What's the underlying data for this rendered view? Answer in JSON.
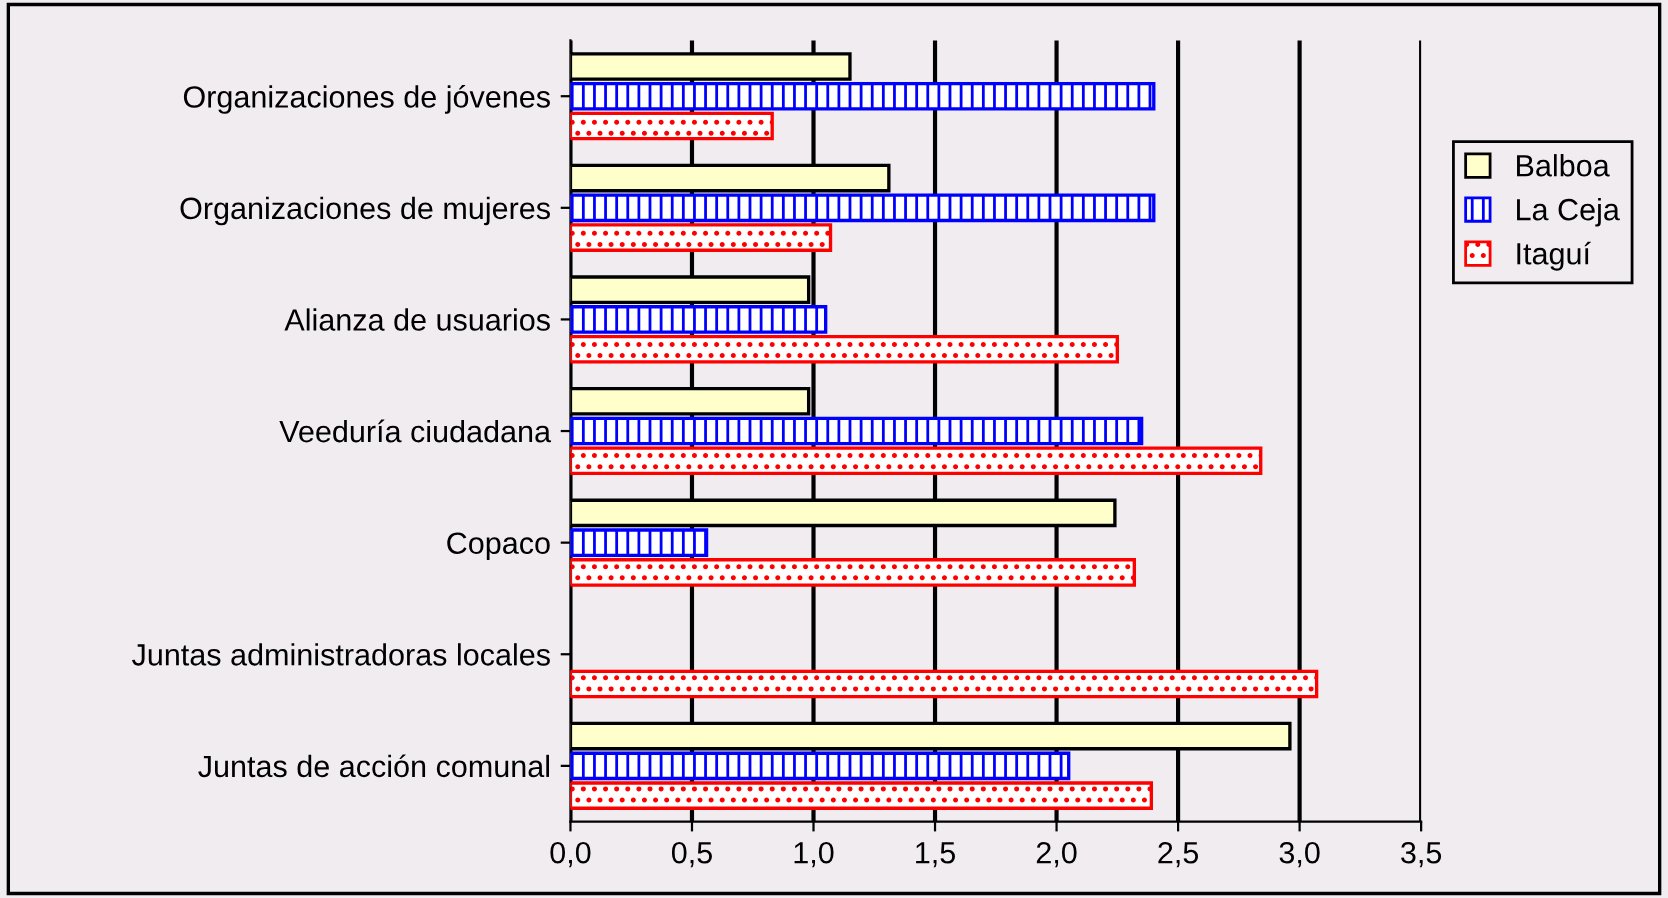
{
  "chart_data": {
    "type": "bar",
    "orientation": "horizontal",
    "categories": [
      "Organizaciones de jóvenes",
      "Organizaciones de mujeres",
      "Alianza de usuarios",
      "Veeduría ciudadana",
      "Copaco",
      "Juntas administradoras locales",
      "Juntas de acción comunal"
    ],
    "series": [
      {
        "name": "Balboa",
        "color": "#ffffcc",
        "values": [
          1.15,
          1.31,
          0.98,
          0.98,
          2.24,
          null,
          2.96
        ]
      },
      {
        "name": "La Ceja",
        "color": "#0000ff",
        "values": [
          2.4,
          2.4,
          1.05,
          2.35,
          0.56,
          null,
          2.05
        ]
      },
      {
        "name": "Itaguí",
        "color": "#ff0000",
        "values": [
          0.83,
          1.07,
          2.25,
          2.84,
          2.32,
          3.07,
          2.39
        ]
      }
    ],
    "xlim": [
      0,
      3.5
    ],
    "xticks": [
      {
        "value": 0,
        "label": "0,0"
      },
      {
        "value": 0.5,
        "label": "0,5"
      },
      {
        "value": 1,
        "label": "1,0"
      },
      {
        "value": 1.5,
        "label": "1,5"
      },
      {
        "value": 2,
        "label": "2,0"
      },
      {
        "value": 2.5,
        "label": "2,5"
      },
      {
        "value": 3,
        "label": "3,0"
      },
      {
        "value": 3.5,
        "label": "3,5"
      }
    ],
    "grid": "x",
    "legend": "right"
  }
}
